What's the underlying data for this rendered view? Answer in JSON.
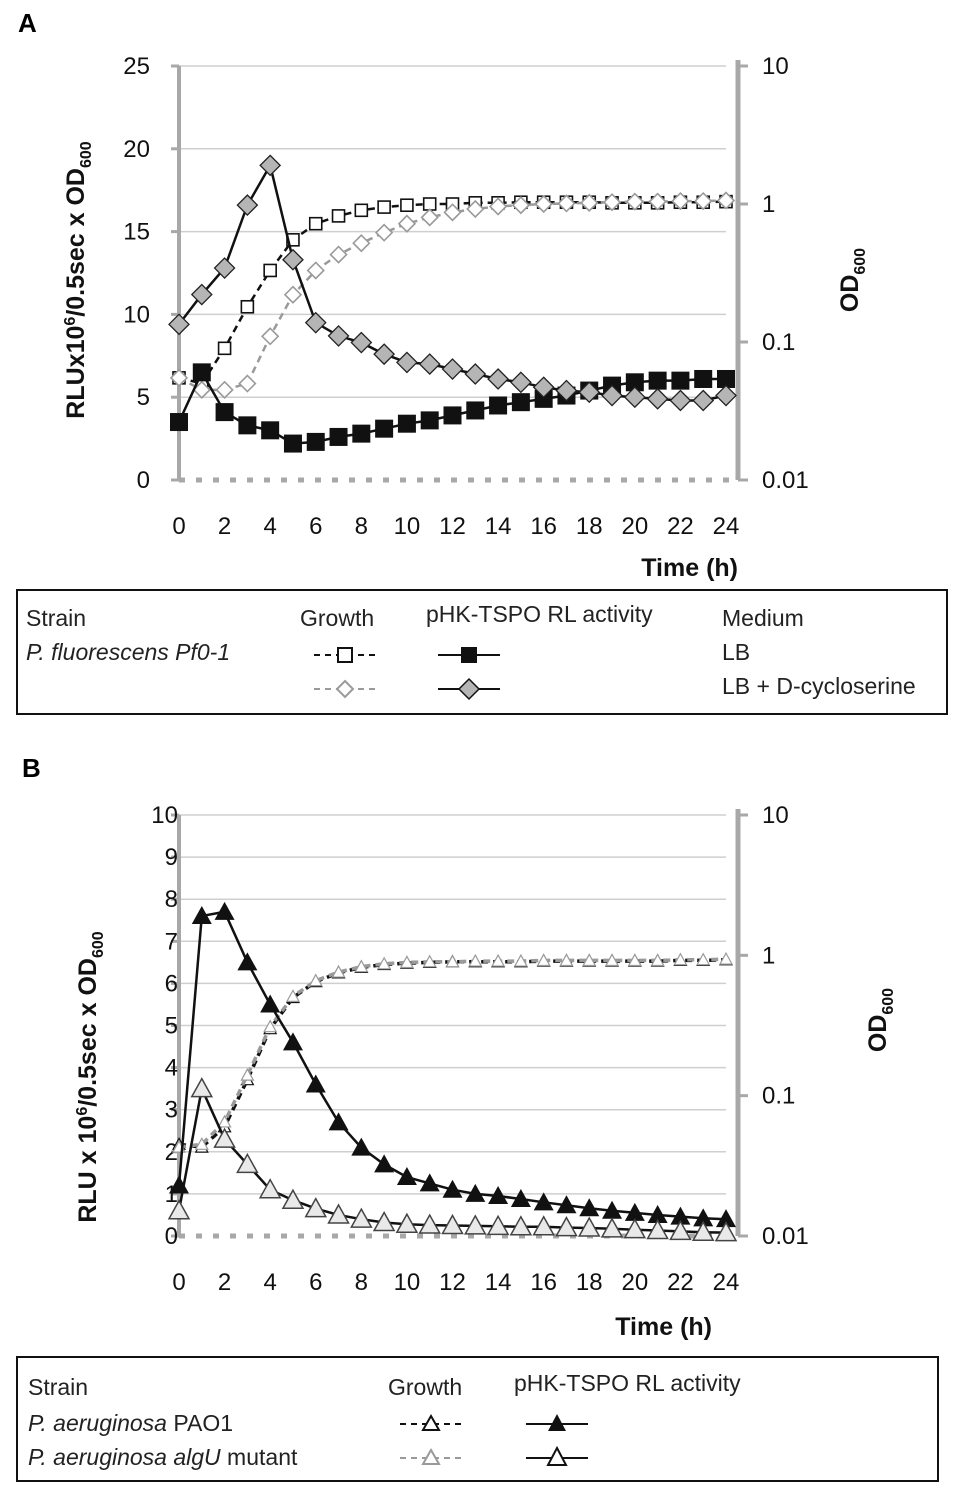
{
  "chart_data": [
    {
      "panel": "A",
      "type": "line",
      "x": [
        0,
        1,
        2,
        3,
        4,
        5,
        6,
        7,
        8,
        9,
        10,
        11,
        12,
        13,
        14,
        15,
        16,
        17,
        18,
        19,
        20,
        21,
        22,
        23,
        24
      ],
      "xticks": [
        0,
        2,
        4,
        6,
        8,
        10,
        12,
        14,
        16,
        18,
        20,
        22,
        24
      ],
      "xlabel": "Time (h)",
      "ylabel_left": "RLUx10^6/0.5sec x OD600",
      "ylim_left": [
        0,
        25
      ],
      "yticks_left": [
        0,
        5,
        10,
        15,
        20,
        25
      ],
      "ylabel_right": "OD600",
      "ylim_right_log": [
        0.01,
        10
      ],
      "yticks_right": [
        "0.01",
        "0.1",
        "1",
        "10"
      ],
      "series": [
        {
          "name": "P. fluorescens Pf0-1 LB growth",
          "axis": "right",
          "style": "dashed",
          "color": "#111111",
          "marker": "square-open",
          "values": [
            0.055,
            0.05,
            0.09,
            0.18,
            0.33,
            0.55,
            0.72,
            0.82,
            0.9,
            0.95,
            0.98,
            1.0,
            1.0,
            1.02,
            1.02,
            1.03,
            1.03,
            1.03,
            1.03,
            1.02,
            1.02,
            1.02,
            1.03,
            1.03,
            1.04
          ]
        },
        {
          "name": "P. fluorescens Pf0-1 LB + D-cycloserine growth",
          "axis": "right",
          "style": "dashed",
          "color": "#9a9a9a",
          "marker": "diamond-open",
          "values": [
            0.055,
            0.045,
            0.045,
            0.05,
            0.11,
            0.22,
            0.33,
            0.43,
            0.52,
            0.62,
            0.72,
            0.8,
            0.87,
            0.92,
            0.96,
            0.98,
            1.0,
            1.01,
            1.02,
            1.03,
            1.04,
            1.04,
            1.05,
            1.05,
            1.06
          ]
        },
        {
          "name": "pHK-TSPO RL activity LB",
          "axis": "left",
          "style": "solid",
          "color": "#111111",
          "marker": "square-filled",
          "values": [
            3.5,
            6.5,
            4.1,
            3.3,
            3.0,
            2.2,
            2.3,
            2.6,
            2.8,
            3.1,
            3.4,
            3.6,
            3.9,
            4.2,
            4.5,
            4.7,
            4.9,
            5.1,
            5.4,
            5.7,
            5.9,
            6.0,
            6.0,
            6.1,
            6.1
          ]
        },
        {
          "name": "pHK-TSPO RL activity LB + D-cycloserine",
          "axis": "left",
          "style": "solid",
          "color": "#111111",
          "marker": "diamond-gray",
          "values": [
            9.4,
            11.2,
            12.8,
            16.6,
            19.0,
            13.3,
            9.5,
            8.7,
            8.3,
            7.6,
            7.1,
            7.0,
            6.7,
            6.4,
            6.1,
            5.9,
            5.6,
            5.4,
            5.3,
            5.1,
            5.0,
            4.9,
            4.8,
            4.8,
            5.1
          ]
        }
      ]
    },
    {
      "panel": "B",
      "type": "line",
      "x": [
        0,
        1,
        2,
        3,
        4,
        5,
        6,
        7,
        8,
        9,
        10,
        11,
        12,
        13,
        14,
        15,
        16,
        17,
        18,
        19,
        20,
        21,
        22,
        23,
        24
      ],
      "xticks": [
        0,
        2,
        4,
        6,
        8,
        10,
        12,
        14,
        16,
        18,
        20,
        22,
        24
      ],
      "xlabel": "Time (h)",
      "ylabel_left": "RLU x 10^6/0.5sec x OD600",
      "ylim_left": [
        0,
        10
      ],
      "yticks_left": [
        0,
        1,
        2,
        3,
        4,
        5,
        6,
        7,
        8,
        9,
        10
      ],
      "ylabel_right": "OD600",
      "ylim_right_log": [
        0.01,
        10
      ],
      "yticks_right": [
        "0.01",
        "0.1",
        "1",
        "10"
      ],
      "series": [
        {
          "name": "P. aeruginosa PAO1 growth",
          "axis": "right",
          "style": "dashed",
          "color": "#111111",
          "marker": "triangle-open",
          "values": [
            0.045,
            0.043,
            0.06,
            0.13,
            0.3,
            0.5,
            0.65,
            0.75,
            0.82,
            0.86,
            0.88,
            0.89,
            0.9,
            0.9,
            0.9,
            0.9,
            0.91,
            0.91,
            0.91,
            0.91,
            0.91,
            0.91,
            0.92,
            0.92,
            0.93
          ]
        },
        {
          "name": "P. aeruginosa algU mutant growth",
          "axis": "right",
          "style": "dashed",
          "color": "#9a9a9a",
          "marker": "triangle-open-gray",
          "values": [
            0.043,
            0.045,
            0.065,
            0.14,
            0.31,
            0.51,
            0.66,
            0.76,
            0.83,
            0.87,
            0.89,
            0.9,
            0.9,
            0.91,
            0.91,
            0.91,
            0.92,
            0.92,
            0.92,
            0.92,
            0.92,
            0.92,
            0.93,
            0.93,
            0.94
          ]
        },
        {
          "name": "pHK-TSPO RL activity PAO1",
          "axis": "left",
          "style": "solid",
          "color": "#111111",
          "marker": "triangle-filled",
          "values": [
            1.2,
            7.6,
            7.7,
            6.5,
            5.5,
            4.6,
            3.6,
            2.7,
            2.1,
            1.7,
            1.4,
            1.25,
            1.1,
            1.0,
            0.95,
            0.88,
            0.8,
            0.73,
            0.66,
            0.6,
            0.55,
            0.5,
            0.46,
            0.42,
            0.4
          ]
        },
        {
          "name": "pHK-TSPO RL activity algU mutant",
          "axis": "left",
          "style": "solid",
          "color": "#111111",
          "marker": "triangle-open-gray",
          "values": [
            0.6,
            3.5,
            2.3,
            1.7,
            1.1,
            0.85,
            0.65,
            0.5,
            0.4,
            0.32,
            0.28,
            0.26,
            0.25,
            0.24,
            0.23,
            0.22,
            0.22,
            0.2,
            0.19,
            0.17,
            0.15,
            0.13,
            0.11,
            0.09,
            0.08
          ]
        }
      ]
    }
  ],
  "legend_a": {
    "head_strain": "Strain",
    "head_growth": "Growth",
    "head_activity": "pHK-TSPO RL activity",
    "head_medium": "Medium",
    "strain": "P. fluorescens Pf0-1",
    "medium_1": "LB",
    "medium_2": "LB + D-cycloserine"
  },
  "legend_b": {
    "head_strain": "Strain",
    "head_growth": "Growth",
    "head_activity": "pHK-TSPO RL activity",
    "strain_1_italic": "P. aeruginosa",
    "strain_1_rest": " PAO1",
    "strain_2_italic": "P. aeruginosa algU",
    "strain_2_rest": " mutant"
  },
  "colors": {
    "axis_gray": "#a8a8a8",
    "grid": "#cfcfcf",
    "dark": "#111111",
    "light_gray_marker": "#bdbdbd",
    "diamond_fill": "#b5b5b5"
  }
}
